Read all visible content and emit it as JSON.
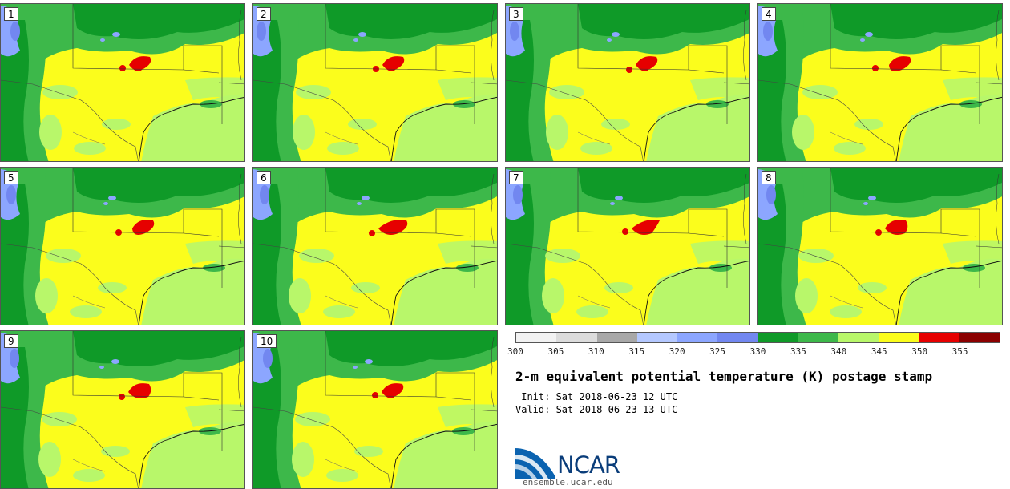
{
  "panels": [
    {
      "label": "1"
    },
    {
      "label": "2"
    },
    {
      "label": "3"
    },
    {
      "label": "4"
    },
    {
      "label": "5"
    },
    {
      "label": "6"
    },
    {
      "label": "7"
    },
    {
      "label": "8"
    },
    {
      "label": "9"
    },
    {
      "label": "10"
    }
  ],
  "colorbar": {
    "ticks": [
      "300",
      "305",
      "310",
      "315",
      "320",
      "325",
      "330",
      "335",
      "340",
      "345",
      "350",
      "355"
    ],
    "colors": [
      "#f2f2f2",
      "#dcdcdc",
      "#a8a8a8",
      "#b4c8ff",
      "#8ca6ff",
      "#7287f0",
      "#0f9a28",
      "#3db84a",
      "#b8f76a",
      "#fbfd1c",
      "#e60000",
      "#8b0000"
    ]
  },
  "title": "2-m equivalent potential temperature (K) postage stamp",
  "init": " Init: Sat 2018-06-23 12 UTC",
  "valid": "Valid: Sat 2018-06-23 13 UTC",
  "logo": {
    "text": "NCAR",
    "site": "ensemble.ucar.edu"
  }
}
